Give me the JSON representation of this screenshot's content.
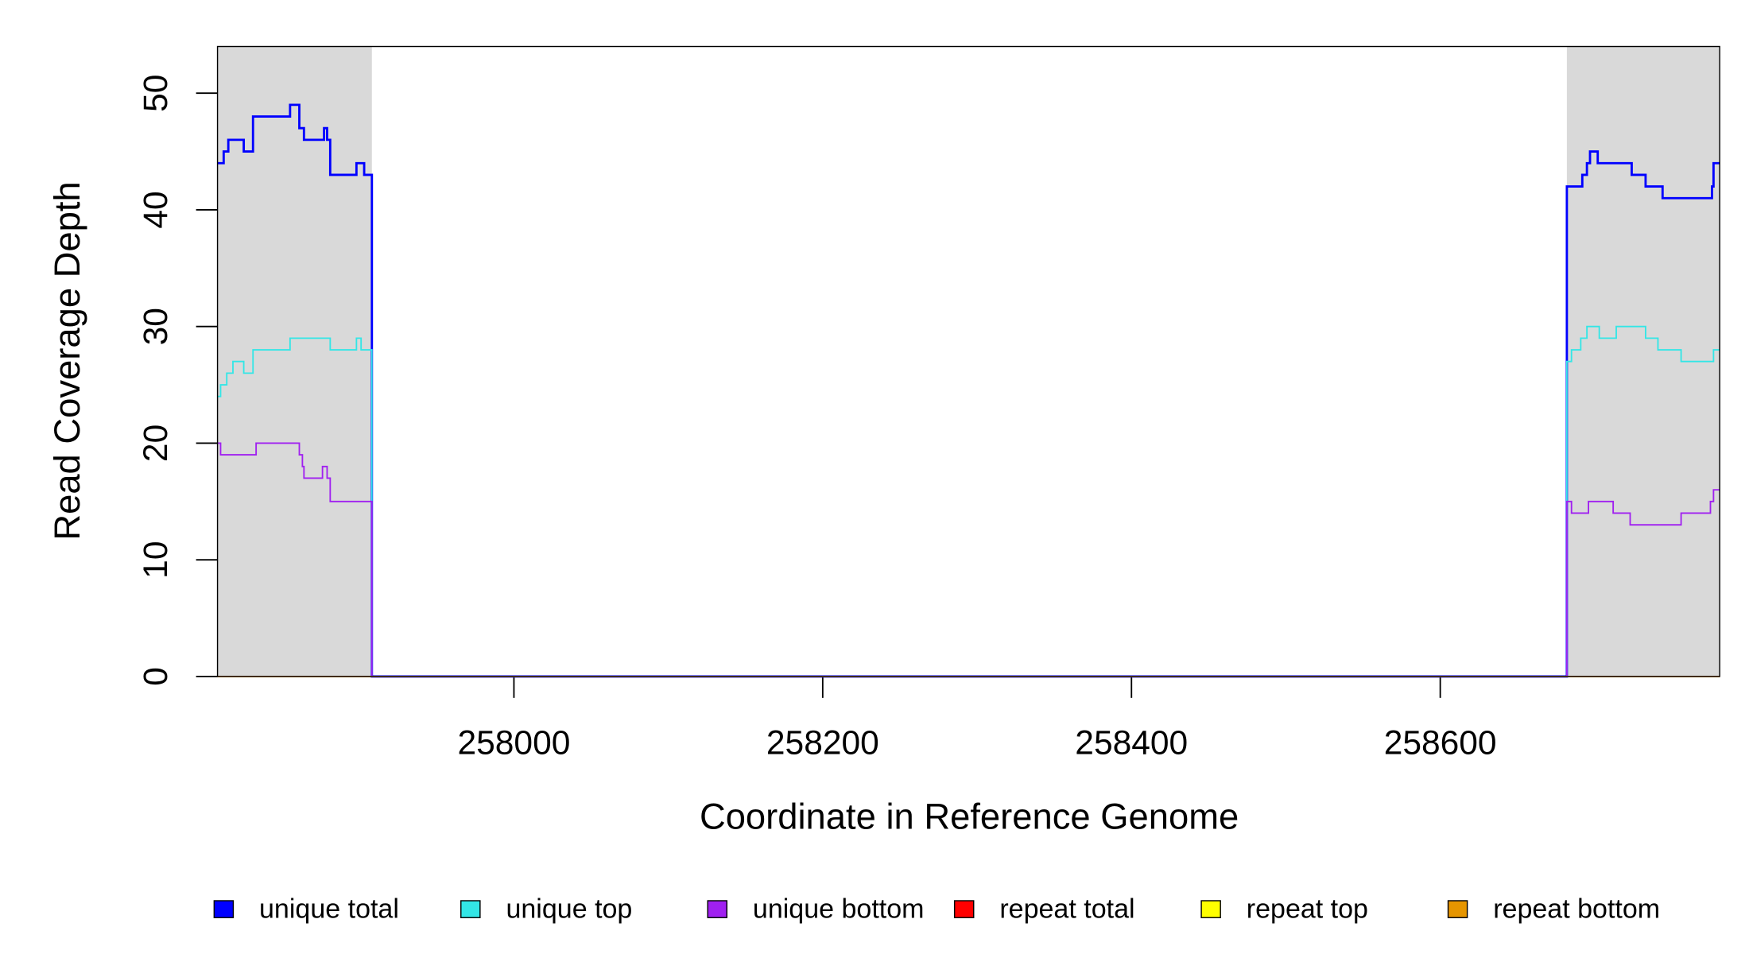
{
  "chart_data": {
    "type": "line",
    "step": "post",
    "xlabel": "Coordinate in Reference Genome",
    "ylabel": "Read Coverage Depth",
    "xlim": [
      257808,
      258781
    ],
    "ylim": [
      0,
      54
    ],
    "xticks": [
      258000,
      258200,
      258400,
      258600
    ],
    "yticks": [
      0,
      10,
      20,
      30,
      40,
      50
    ],
    "shaded_regions": [
      [
        257808,
        257908
      ],
      [
        258682,
        258781
      ]
    ],
    "shade_color": "#d9d9d9",
    "series": [
      {
        "name": "unique total",
        "color": "#0000ff",
        "width": 2,
        "x": [
          257808,
          257812,
          257815,
          257825,
          257831,
          257855,
          257861,
          257864,
          257877,
          257879,
          257881,
          257898,
          257903,
          257908,
          258682,
          258692,
          258695,
          258697,
          258702,
          258724,
          258733,
          258744,
          258776,
          258777
        ],
        "values": [
          44,
          45,
          46,
          45,
          48,
          49,
          47,
          46,
          47,
          46,
          43,
          44,
          43,
          0,
          42,
          43,
          44,
          45,
          44,
          43,
          42,
          41,
          42,
          44
        ]
      },
      {
        "name": "unique top",
        "color": "#33e6e6",
        "width": 1.3,
        "x": [
          257808,
          257810,
          257814,
          257818,
          257825,
          257831,
          257855,
          257881,
          257898,
          257901,
          257908,
          258682,
          258685,
          258691,
          258695,
          258703,
          258714,
          258733,
          258741,
          258756,
          258777
        ],
        "values": [
          24,
          25,
          26,
          27,
          26,
          28,
          29,
          28,
          29,
          28,
          0,
          27,
          28,
          29,
          30,
          29,
          30,
          29,
          28,
          27,
          28
        ]
      },
      {
        "name": "unique bottom",
        "color": "#a020f0",
        "width": 1.3,
        "x": [
          257808,
          257810,
          257833,
          257861,
          257863,
          257864,
          257876,
          257879,
          257881,
          257908,
          258682,
          258685,
          258696,
          258712,
          258723,
          258756,
          258775,
          258777
        ],
        "values": [
          20,
          19,
          20,
          19,
          18,
          17,
          18,
          17,
          15,
          0,
          15,
          14,
          15,
          14,
          13,
          14,
          15,
          16
        ]
      },
      {
        "name": "repeat total",
        "color": "#ff0000",
        "width": 1.3,
        "x": [
          257808
        ],
        "values": [
          0
        ]
      },
      {
        "name": "repeat top",
        "color": "#ffff00",
        "width": 1.3,
        "x": [
          257808
        ],
        "values": [
          0
        ]
      },
      {
        "name": "repeat bottom",
        "color": "#e69500",
        "width": 1.3,
        "x": [
          257808
        ],
        "values": [
          0
        ]
      }
    ]
  }
}
